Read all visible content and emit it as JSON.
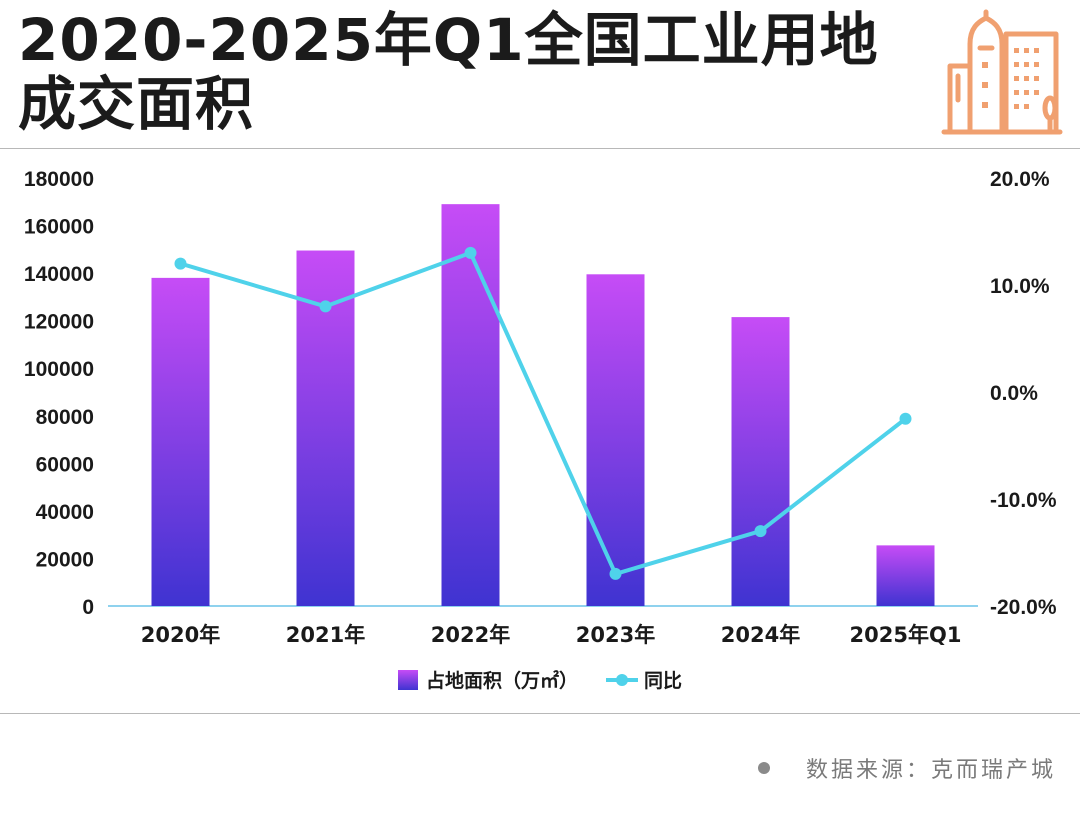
{
  "header": {
    "title_line1": "2020-2025年Q1全国工业用地",
    "title_line2": "成交面积"
  },
  "icons": {
    "header_icon": "building-icon"
  },
  "source": {
    "text": "数据来源：克而瑞产城"
  },
  "colors": {
    "bar_top": "#c64cf6",
    "bar_bottom": "#3f33d1",
    "line": "#4fd2ea",
    "axis": "#8fd2ee",
    "icon": "#f0a070"
  },
  "chart_data": {
    "type": "bar",
    "categories": [
      "2020年",
      "2021年",
      "2022年",
      "2023年",
      "2024年",
      "2025年Q1"
    ],
    "series": [
      {
        "name": "占地面积（万㎡）",
        "type": "bar",
        "axis": "left",
        "values": [
          138000,
          149500,
          169000,
          139500,
          121500,
          25500
        ]
      },
      {
        "name": "同比",
        "type": "line",
        "axis": "right",
        "values": [
          12.0,
          8.0,
          13.0,
          -17.0,
          -13.0,
          -2.5
        ]
      }
    ],
    "y_left": {
      "min": 0,
      "max": 180000,
      "ticks": [
        "0",
        "20000",
        "40000",
        "60000",
        "80000",
        "100000",
        "120000",
        "140000",
        "160000",
        "180000"
      ]
    },
    "y_right": {
      "min": -20,
      "max": 20,
      "ticks": [
        "-20.0%",
        "-10.0%",
        "0.0%",
        "10.0%",
        "20.0%"
      ]
    },
    "legend": {
      "position": "bottom"
    }
  }
}
